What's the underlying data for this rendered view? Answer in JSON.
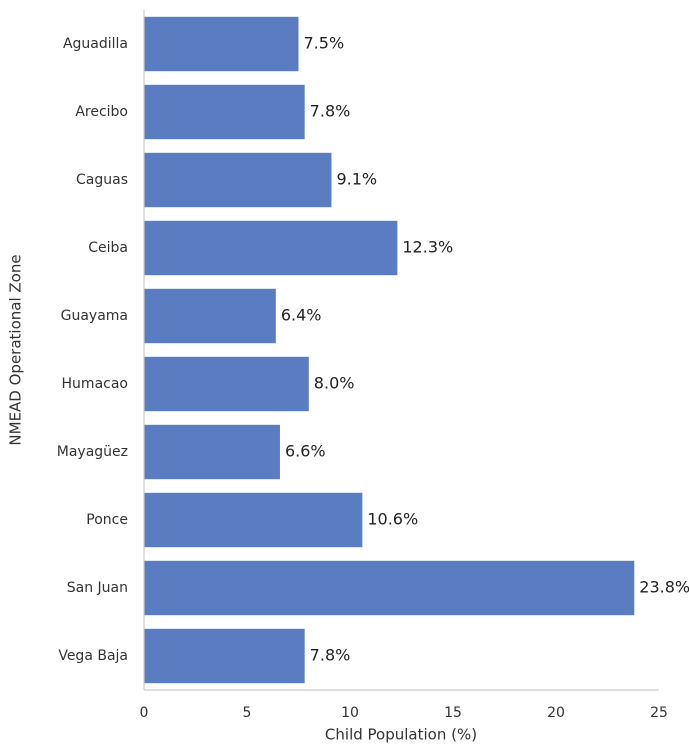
{
  "chart_data": {
    "type": "barh",
    "xlabel": "Child Population (%)",
    "ylabel": "NMEAD Operational Zone",
    "categories": [
      "Aguadilla",
      "Arecibo",
      "Caguas",
      "Ceiba",
      "Guayama",
      "Humacao",
      "Mayagüez",
      "Ponce",
      "San Juan",
      "Vega Baja"
    ],
    "values": [
      7.5,
      7.8,
      9.1,
      12.3,
      6.4,
      8.0,
      6.6,
      10.6,
      23.8,
      7.8
    ],
    "value_labels": [
      "7.5%",
      "7.8%",
      "9.1%",
      "12.3%",
      "6.4%",
      "8.0%",
      "6.6%",
      "10.6%",
      "23.8%",
      "7.8%"
    ],
    "color": "#5a7dc2",
    "xlim": [
      0,
      25
    ],
    "xticks": [
      0,
      5,
      10,
      15,
      20,
      25
    ],
    "grid": false
  }
}
